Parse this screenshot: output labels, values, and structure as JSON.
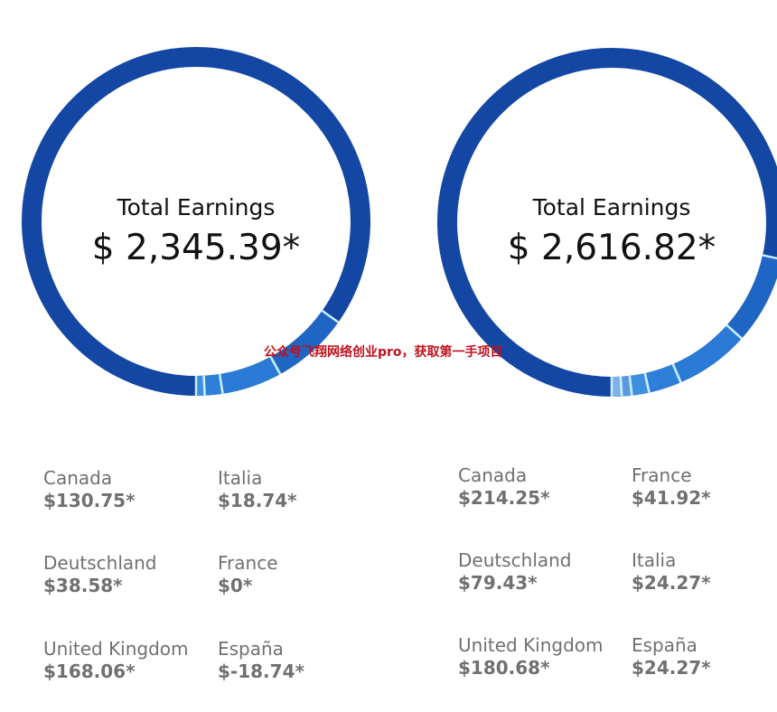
{
  "panels": [
    {
      "title": "Total Earnings",
      "total": "$ 2,345.39*",
      "regions": [
        {
          "name": "Canada",
          "value": "$130.75*"
        },
        {
          "name": "Italia",
          "value": "$18.74*"
        },
        {
          "name": "Deutschland",
          "value": "$38.58*"
        },
        {
          "name": "France",
          "value": "$0*"
        },
        {
          "name": "United Kingdom",
          "value": "$168.06*"
        },
        {
          "name": "España",
          "value": "$-18.74*"
        }
      ]
    },
    {
      "title": "Total Earnings",
      "total": "$ 2,616.82*",
      "regions": [
        {
          "name": "Canada",
          "value": "$214.25*"
        },
        {
          "name": "France",
          "value": "$41.92*"
        },
        {
          "name": "Deutschland",
          "value": "$79.43*"
        },
        {
          "name": "Italia",
          "value": "$24.27*"
        },
        {
          "name": "United Kingdom",
          "value": "$180.68*"
        },
        {
          "name": "España",
          "value": "$24.27*"
        }
      ]
    }
  ],
  "chart_data": [
    {
      "type": "pie",
      "total": 2345.39,
      "segments": [
        {
          "name": "Italia",
          "value": 18.74,
          "color": "#3f8fe0"
        },
        {
          "name": "Deutschland",
          "value": 38.58,
          "color": "#2f7fd8"
        },
        {
          "name": "Canada",
          "value": 130.75,
          "color": "#2a7ad6"
        },
        {
          "name": "United Kingdom",
          "value": 168.06,
          "color": "#1f66c4"
        }
      ],
      "base_color": "#1447a4"
    },
    {
      "type": "pie",
      "total": 2616.82,
      "segments": [
        {
          "name": "España",
          "value": 24.27,
          "color": "#7fb0e6"
        },
        {
          "name": "Italia",
          "value": 24.27,
          "color": "#5a99dd"
        },
        {
          "name": "France",
          "value": 41.92,
          "color": "#3f8fe0"
        },
        {
          "name": "Deutschland",
          "value": 79.43,
          "color": "#2f7fd8"
        },
        {
          "name": "United Kingdom",
          "value": 180.68,
          "color": "#2a7ad6"
        },
        {
          "name": "Canada",
          "value": 214.25,
          "color": "#1f66c4"
        }
      ],
      "base_color": "#1447a4"
    }
  ],
  "watermark": "公众号飞翔网络创业pro，获取第一手项目",
  "colors": {
    "separator": "#c8f0ff",
    "text": "#707070"
  }
}
